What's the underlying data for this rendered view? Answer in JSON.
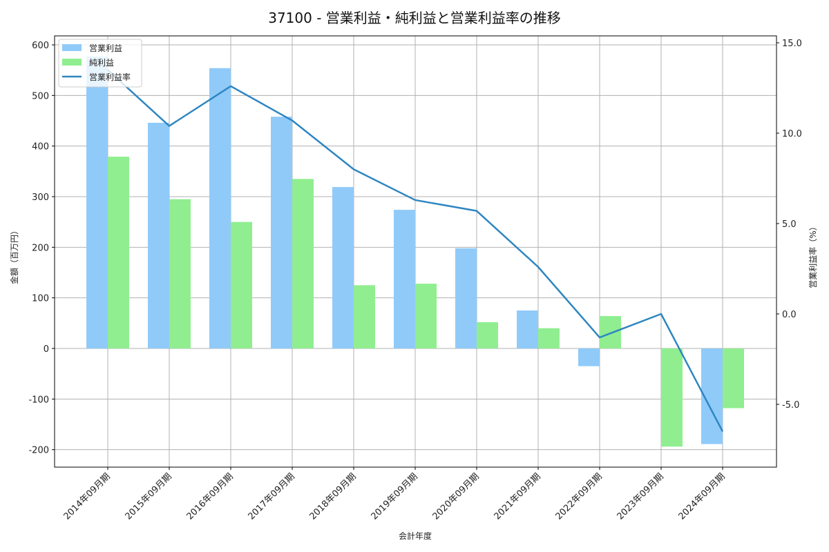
{
  "chart_data": {
    "type": "bar",
    "title": "37100 - 営業利益・純利益と営業利益率の推移",
    "xlabel": "会計年度",
    "ylabel": "金額（百万円）",
    "ylabel_right": "営業利益率（%）",
    "categories": [
      "2014年09月期",
      "2015年09月期",
      "2016年09月期",
      "2017年09月期",
      "2018年09月期",
      "2019年09月期",
      "2020年09月期",
      "2021年09月期",
      "2022年09月期",
      "2023年09月期",
      "2024年09月期"
    ],
    "series": [
      {
        "name": "営業利益",
        "type": "bar",
        "axis": "left",
        "color": "#90CAF9",
        "values": [
          577,
          446,
          554,
          458,
          319,
          274,
          198,
          75,
          -35,
          0,
          -189
        ]
      },
      {
        "name": "純利益",
        "type": "bar",
        "axis": "left",
        "color": "#90EE90",
        "values": [
          379,
          295,
          250,
          335,
          125,
          128,
          52,
          40,
          64,
          -194,
          -118
        ]
      },
      {
        "name": "営業利益率",
        "type": "line",
        "axis": "right",
        "color": "#2E86C1",
        "values": [
          13.5,
          10.4,
          12.6,
          10.7,
          8.0,
          6.3,
          5.7,
          2.6,
          -1.3,
          0.0,
          -6.5
        ]
      }
    ],
    "ylim": [
      -234,
      618
    ],
    "ylim_right": [
      -8.5,
      15.4
    ],
    "yticks": [
      -200,
      -100,
      0,
      100,
      200,
      300,
      400,
      500,
      600
    ],
    "yticks_right": [
      "-5.0",
      "0.0",
      "5.0",
      "10.0",
      "15.0"
    ],
    "grid": true,
    "legend_position": "upper left"
  }
}
